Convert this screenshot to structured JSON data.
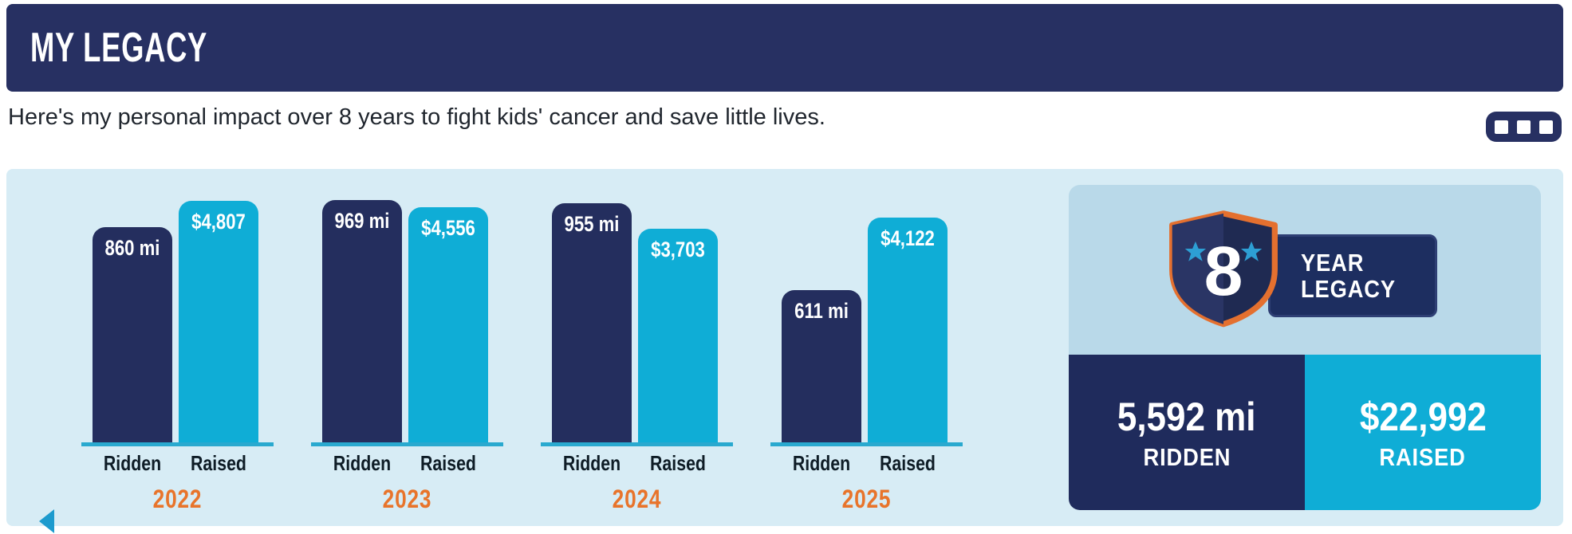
{
  "header": {
    "title": "MY LEGACY"
  },
  "intro": {
    "text": "Here's my personal impact over 8 years to fight kids' cancer and save little lives."
  },
  "chart_data": {
    "type": "bar",
    "title": "",
    "categories": [
      "2022",
      "2023",
      "2024",
      "2025"
    ],
    "series": [
      {
        "name": "Ridden",
        "unit": "miles",
        "values": [
          860,
          969,
          955,
          611
        ],
        "labels": [
          "860 mi",
          "969 mi",
          "955 mi",
          "611 mi"
        ],
        "color": "#242e5e"
      },
      {
        "name": "Raised",
        "unit": "USD",
        "values": [
          4807,
          4556,
          3703,
          4122
        ],
        "labels": [
          "$4,807",
          "$4,556",
          "$3,703",
          "$4,122"
        ],
        "color": "#0fadd6"
      }
    ],
    "grid": false,
    "legend_position": "labels-under-each-bar",
    "category_label_color": "#e8742b"
  },
  "summary": {
    "badge": {
      "number": "8",
      "line1": "YEAR",
      "line2": "LEGACY"
    },
    "ridden": {
      "value": "5,592 mi",
      "caption": "RIDDEN"
    },
    "raised": {
      "value": "$22,992",
      "caption": "RAISED"
    }
  },
  "colors": {
    "navy": "#242e5e",
    "light_blue": "#0fadd6",
    "panel_bg": "#d7ecf5",
    "card_top_bg": "#b9d9e9",
    "orange": "#e8742b",
    "baseline": "#29a9cf",
    "shield_border": "#e4702f"
  }
}
